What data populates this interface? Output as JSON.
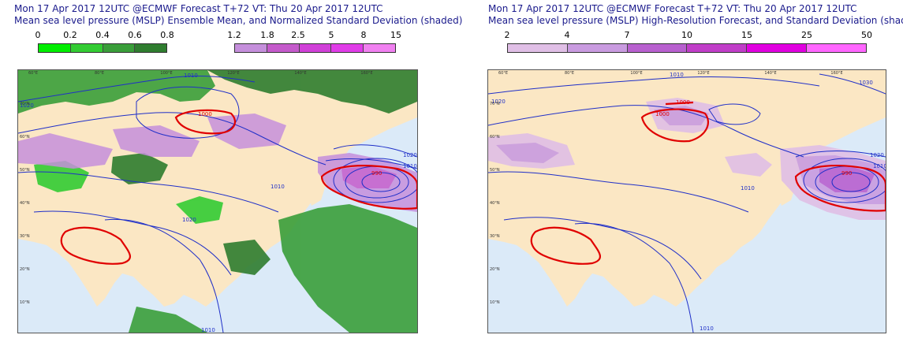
{
  "left_panel": {
    "title_line1": "Mon 17 Apr 2017 12UTC @ECMWF Forecast T+72 VT: Thu 20 Apr 2017 12UTC",
    "title_line2": "Mean sea level pressure (MSLP) Ensemble Mean, and Normalized Standard Deviation (shaded)",
    "colorbar_green": {
      "labels": [
        "0",
        "0.2",
        "0.4",
        "0.6",
        "0.8"
      ],
      "colors": [
        "#00ee00",
        "#33cc33",
        "#3a9e3a",
        "#2f7d2f"
      ]
    },
    "colorbar_purple": {
      "labels": [
        "1.2",
        "1.8",
        "2.5",
        "5",
        "8",
        "15"
      ],
      "colors": [
        "#c58fdc",
        "#c45acb",
        "#d040d8",
        "#e03ce8",
        "#f080f0"
      ]
    },
    "contour_labels": [
      "1010",
      "1020",
      "1000",
      "990",
      "1010",
      "1020",
      "1010",
      "1020",
      "1010"
    ]
  },
  "right_panel": {
    "title_line1": "Mon 17 Apr 2017 12UTC @ECMWF Forecast T+72 VT: Thu 20 Apr 2017 12UTC",
    "title_line2": "Mean sea level pressure (MSLP) High-Resolution Forecast, and Standard Deviation (shaded)",
    "colorbar": {
      "labels": [
        "2",
        "4",
        "7",
        "10",
        "15",
        "25",
        "50"
      ],
      "colors": [
        "#e0bfe6",
        "#c99be0",
        "#b860cf",
        "#c03dc8",
        "#e000e0",
        "#ff66ff"
      ]
    },
    "contour_labels": [
      "1010",
      "1020",
      "1030",
      "1000",
      "1000",
      "990",
      "1010",
      "1020",
      "1010",
      "1010"
    ]
  },
  "map_labels": {
    "lon_left": [
      "60°E",
      "80°E",
      "100°E",
      "120°E",
      "140°E",
      "160°E"
    ],
    "lon_right": [
      "60°E",
      "80°E",
      "100°E",
      "120°E",
      "140°E",
      "160°E"
    ],
    "lat": [
      "70°N",
      "60°N",
      "50°N",
      "40°N",
      "30°N",
      "20°N",
      "10°N"
    ]
  },
  "colors": {
    "ocean": "#dbeaf8",
    "land": "#fbe7c4",
    "isobar": "#1f2fc8",
    "highlight_isobar": "#e00000",
    "title": "#1a1a8c"
  }
}
